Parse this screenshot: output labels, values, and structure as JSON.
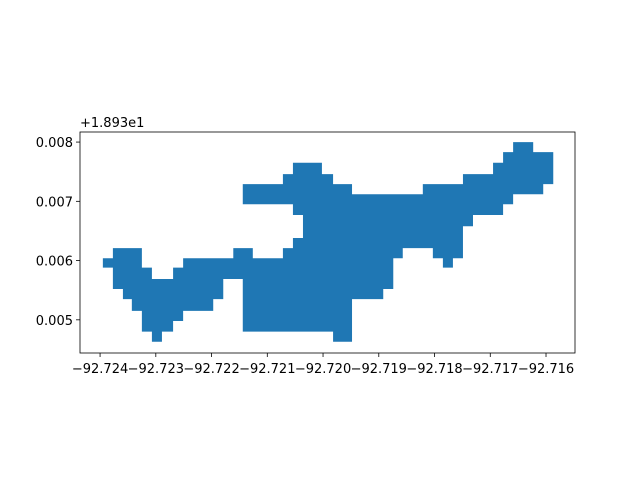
{
  "chart_data": {
    "type": "polygon",
    "color": "#1f77b4",
    "y_offset_label": "+1.893e1",
    "xlim": [
      -92.72436,
      -92.71548
    ],
    "ylim": [
      0.00444,
      0.00817
    ],
    "xticks": [
      {
        "value": -92.724,
        "label": "−92.724"
      },
      {
        "value": -92.723,
        "label": "−92.723"
      },
      {
        "value": -92.722,
        "label": "−92.722"
      },
      {
        "value": -92.721,
        "label": "−92.721"
      },
      {
        "value": -92.72,
        "label": "−92.720"
      },
      {
        "value": -92.719,
        "label": "−92.719"
      },
      {
        "value": -92.718,
        "label": "−92.718"
      },
      {
        "value": -92.717,
        "label": "−92.717"
      },
      {
        "value": -92.716,
        "label": "−92.716"
      }
    ],
    "yticks": [
      0.005,
      0.006,
      0.007,
      0.008
    ],
    "x": [
      -92.72395,
      -92.72377,
      -92.72377,
      -92.72325,
      -92.72325,
      -92.72307,
      -92.72307,
      -92.72269,
      -92.72269,
      -92.72251,
      -92.72251,
      -92.72161,
      -92.72161,
      -92.72126,
      -92.72126,
      -92.72072,
      -92.72072,
      -92.72054,
      -92.72054,
      -92.72036,
      -92.72036,
      -92.72054,
      -92.72054,
      -92.72144,
      -92.72144,
      -92.72072,
      -92.72072,
      -92.72054,
      -92.72054,
      -92.72002,
      -92.72002,
      -92.71982,
      -92.71982,
      -92.71948,
      -92.71948,
      -92.71821,
      -92.71821,
      -92.71749,
      -92.71749,
      -92.71695,
      -92.71695,
      -92.71677,
      -92.71677,
      -92.71659,
      -92.71659,
      -92.71623,
      -92.71623,
      -92.71587,
      -92.71587,
      -92.71605,
      -92.71605,
      -92.71659,
      -92.71659,
      -92.71677,
      -92.71677,
      -92.71731,
      -92.71731,
      -92.71749,
      -92.71749,
      -92.71767,
      -92.71767,
      -92.71785,
      -92.71785,
      -92.71803,
      -92.71803,
      -92.71857,
      -92.71857,
      -92.71874,
      -92.71874,
      -92.71892,
      -92.71892,
      -92.71948,
      -92.71948,
      -92.71982,
      -92.71982,
      -92.72144,
      -92.72144,
      -92.72179,
      -92.72179,
      -92.72197,
      -92.72197,
      -92.72251,
      -92.72251,
      -92.72269,
      -92.72269,
      -92.72289,
      -92.72289,
      -92.72307,
      -92.72307,
      -92.72325,
      -92.72325,
      -92.72343,
      -92.72343,
      -92.72359,
      -92.72359,
      -92.72377,
      -92.72377,
      -92.72395
    ],
    "y": [
      0.00604,
      0.00604,
      0.00621,
      0.00621,
      0.00588,
      0.00588,
      0.00569,
      0.00569,
      0.00588,
      0.00588,
      0.00604,
      0.00604,
      0.00621,
      0.00621,
      0.00604,
      0.00604,
      0.00621,
      0.00621,
      0.00638,
      0.00638,
      0.00677,
      0.00677,
      0.00695,
      0.00695,
      0.00729,
      0.00729,
      0.00746,
      0.00746,
      0.00765,
      0.00765,
      0.00746,
      0.00746,
      0.00729,
      0.00729,
      0.00712,
      0.00712,
      0.00729,
      0.00729,
      0.00746,
      0.00746,
      0.00765,
      0.00765,
      0.00783,
      0.00783,
      0.008,
      0.008,
      0.00783,
      0.00783,
      0.00729,
      0.00729,
      0.00712,
      0.00712,
      0.00695,
      0.00695,
      0.00677,
      0.00677,
      0.00658,
      0.00658,
      0.00604,
      0.00604,
      0.00588,
      0.00588,
      0.00604,
      0.00604,
      0.00621,
      0.00621,
      0.00604,
      0.00604,
      0.00552,
      0.00552,
      0.00535,
      0.00535,
      0.00463,
      0.00463,
      0.0048,
      0.0048,
      0.00569,
      0.00569,
      0.00535,
      0.00535,
      0.00515,
      0.00515,
      0.00498,
      0.00498,
      0.0048,
      0.0048,
      0.00463,
      0.00463,
      0.0048,
      0.0048,
      0.00515,
      0.00515,
      0.00535,
      0.00535,
      0.00552,
      0.00552,
      0.00588,
      0.00588
    ]
  }
}
